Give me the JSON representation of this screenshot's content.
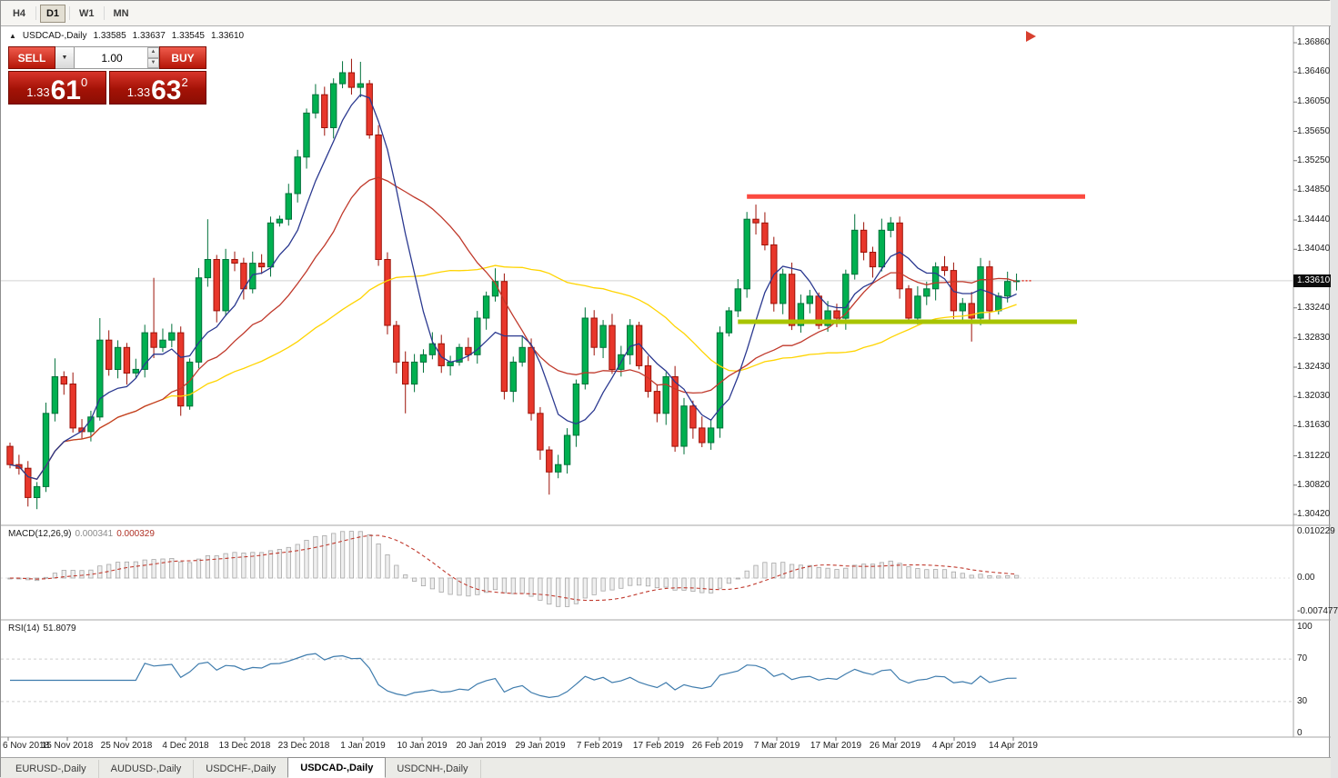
{
  "toolbar": {
    "timeframes": [
      {
        "label": "H4",
        "active": false
      },
      {
        "label": "D1",
        "active": true
      },
      {
        "label": "W1",
        "active": false
      },
      {
        "label": "MN",
        "active": false
      }
    ]
  },
  "chart": {
    "info": {
      "marker": "▲",
      "symbol": "USDCAD-,Daily",
      "open": "1.33585",
      "high": "1.33637",
      "low": "1.33545",
      "close": "1.33610"
    },
    "current_price": "1.33610",
    "trade_panel": {
      "sell_label": "SELL",
      "buy_label": "BUY",
      "volume": "1.00",
      "bid": {
        "big": "1.33",
        "pips": "61",
        "sup": "0"
      },
      "ask": {
        "big": "1.33",
        "pips": "63",
        "sup": "2"
      }
    },
    "price_scale": [
      "1.36860",
      "1.36460",
      "1.36050",
      "1.35650",
      "1.35250",
      "1.34850",
      "1.34440",
      "1.34040",
      "1.33240",
      "1.32830",
      "1.32430",
      "1.32030",
      "1.31630",
      "1.31220",
      "1.30820",
      "1.30420"
    ],
    "date_labels": [
      "6 Nov 2018",
      "15 Nov 2018",
      "25 Nov 2018",
      "4 Dec 2018",
      "13 Dec 2018",
      "23 Dec 2018",
      "1 Jan 2019",
      "10 Jan 2019",
      "20 Jan 2019",
      "29 Jan 2019",
      "7 Feb 2019",
      "17 Feb 2019",
      "26 Feb 2019",
      "7 Mar 2019",
      "17 Mar 2019",
      "26 Mar 2019",
      "4 Apr 2019",
      "14 Apr 2019"
    ]
  },
  "macd": {
    "name": "MACD(12,26,9)",
    "value_main": "0.000341",
    "value_signal": "0.000329",
    "scale": [
      "0.010229",
      "0.00",
      "-0.007477"
    ]
  },
  "rsi": {
    "name": "RSI(14)",
    "value": "51.8079",
    "scale": [
      "100",
      "70",
      "30",
      "0"
    ]
  },
  "bottom_tabs": [
    {
      "label": "EURUSD-,Daily",
      "active": false
    },
    {
      "label": "AUDUSD-,Daily",
      "active": false
    },
    {
      "label": "USDCHF-,Daily",
      "active": false
    },
    {
      "label": "USDCAD-,Daily",
      "active": true
    },
    {
      "label": "USDCNH-,Daily",
      "active": false
    }
  ],
  "chart_data": {
    "type": "candlestick",
    "title": "USDCAD-,Daily",
    "ylim": [
      1.3033,
      1.3696
    ],
    "first_open": 1.3135,
    "closes": [
      1.311,
      1.3105,
      1.3065,
      1.308,
      1.318,
      1.323,
      1.322,
      1.316,
      1.3155,
      1.3175,
      1.328,
      1.324,
      1.327,
      1.3235,
      1.324,
      1.329,
      1.327,
      1.328,
      1.329,
      1.319,
      1.325,
      1.3365,
      1.339,
      1.332,
      1.339,
      1.3385,
      1.335,
      1.3385,
      1.338,
      1.344,
      1.3445,
      1.348,
      1.353,
      1.359,
      1.3615,
      1.357,
      1.363,
      1.3645,
      1.3625,
      1.363,
      1.356,
      1.339,
      1.33,
      1.325,
      1.322,
      1.325,
      1.326,
      1.3275,
      1.3245,
      1.325,
      1.327,
      1.326,
      1.331,
      1.334,
      1.336,
      1.321,
      1.325,
      1.327,
      1.318,
      1.313,
      1.31,
      1.311,
      1.315,
      1.322,
      1.331,
      1.327,
      1.33,
      1.324,
      1.326,
      1.33,
      1.3245,
      1.321,
      1.318,
      1.323,
      1.3135,
      1.319,
      1.316,
      1.314,
      1.316,
      1.329,
      1.332,
      1.335,
      1.3445,
      1.344,
      1.341,
      1.333,
      1.337,
      1.33,
      1.333,
      1.334,
      1.33,
      1.332,
      1.331,
      1.337,
      1.343,
      1.34,
      1.338,
      1.343,
      1.344,
      1.335,
      1.331,
      1.334,
      1.335,
      1.338,
      1.3375,
      1.332,
      1.333,
      1.331,
      1.338,
      1.332,
      1.334,
      1.336,
      1.3361
    ],
    "wick_overrides": {
      "5": {
        "h": 1.3255
      },
      "10": {
        "h": 1.331
      },
      "16": {
        "h": 1.3365
      },
      "22": {
        "h": 1.3445
      },
      "38": {
        "h": 1.3664
      },
      "39": {
        "h": 1.366
      },
      "44": {
        "l": 1.318
      },
      "54": {
        "h": 1.3378
      },
      "60": {
        "l": 1.3069
      },
      "82": {
        "h": 1.3455
      },
      "83": {
        "h": 1.3465
      },
      "94": {
        "h": 1.3452
      },
      "98": {
        "h": 1.3448
      },
      "107": {
        "l": 1.3278
      }
    },
    "overlays": {
      "resistance_level": 1.3476,
      "resistance_color": "#fb4a40",
      "support_level": 1.3305,
      "support_color": "#a8c400",
      "current_price": 1.3361
    },
    "moving_average_colors": {
      "fast": "#2b3990",
      "mid": "#c0392b",
      "slow": "#ffd400"
    },
    "candle_colors": {
      "up_fill": "#00b050",
      "up_stroke": "#00713a",
      "down_fill": "#e8372b",
      "down_stroke": "#9c1208"
    },
    "indicator_panels": [
      {
        "name": "MACD(12,26,9)",
        "current_values": [
          0.000341,
          0.000329
        ],
        "y_ticks": [
          0.010229,
          0,
          -0.007477
        ]
      },
      {
        "name": "RSI(14)",
        "current_value": 51.8079,
        "y_ticks": [
          100,
          70,
          30,
          0
        ],
        "levels": [
          70,
          30
        ]
      }
    ]
  }
}
